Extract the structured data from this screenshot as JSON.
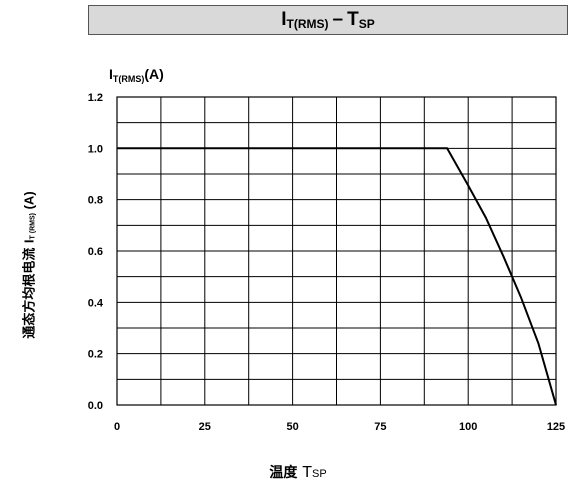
{
  "header": {
    "title_main": "I",
    "title_sub": "T(RMS)",
    "title_dash": "–",
    "title_main2": "T",
    "title_sub2": "SP"
  },
  "chart_data": {
    "type": "line",
    "ylabel_top_main": "I",
    "ylabel_top_sub": "T(RMS)",
    "ylabel_top_unit": "(A)",
    "ylabel_side_cn": "通态方均根电流",
    "ylabel_side_main": "I",
    "ylabel_side_sub": "T (RMS)",
    "ylabel_side_unit": "(A)",
    "xlabel_cn": "温度",
    "xlabel_main": "T",
    "xlabel_sub": "SP",
    "xlim": [
      0,
      125
    ],
    "ylim": [
      0,
      1.2
    ],
    "x_ticks": [
      "0",
      "25",
      "50",
      "75",
      "100",
      "125"
    ],
    "y_ticks": [
      "0.0",
      "0.2",
      "0.4",
      "0.6",
      "0.8",
      "1.0",
      "1.2"
    ],
    "x_tick_values": [
      0,
      25,
      50,
      75,
      100,
      125
    ],
    "y_tick_values": [
      0,
      0.2,
      0.4,
      0.6,
      0.8,
      1.0,
      1.2
    ],
    "grid": true,
    "grid_x_step": 12.5,
    "grid_y_step": 0.1,
    "series": [
      {
        "color": "#000000",
        "points": [
          [
            0,
            1.0
          ],
          [
            94,
            1.0
          ],
          [
            100,
            0.855
          ],
          [
            105,
            0.73
          ],
          [
            110,
            0.58
          ],
          [
            115,
            0.42
          ],
          [
            120,
            0.24
          ],
          [
            125,
            0.0
          ]
        ]
      }
    ]
  }
}
